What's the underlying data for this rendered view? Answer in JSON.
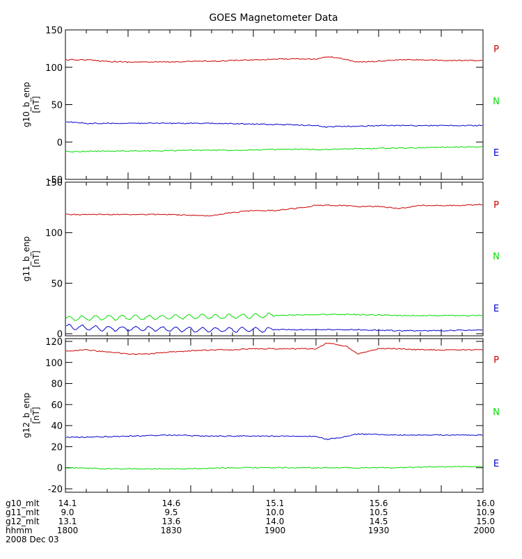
{
  "title": "GOES Magnetometer Data",
  "colors": {
    "P": "#cc0000",
    "N": "#00dd00",
    "E": "#0000cc",
    "axis": "#000000"
  },
  "panel_labels": [
    "P",
    "N",
    "E"
  ],
  "chart_data": [
    {
      "type": "line",
      "title": "GOES Magnetometer Data",
      "ylabel": "g10_b_enp",
      "yunit": "[nT]",
      "ylim": [
        -50,
        150
      ],
      "yticks": [
        -50,
        0,
        50,
        100,
        150
      ],
      "xlim": [
        1800,
        2000
      ],
      "grid": false,
      "legend": "right",
      "series": [
        {
          "name": "P",
          "x": [
            1800,
            1810,
            1820,
            1830,
            1840,
            1850,
            1860,
            1870,
            1880,
            1890,
            1900,
            1910,
            1920,
            1925,
            1930,
            1935,
            1940,
            1950,
            1960,
            1970,
            1980,
            1990,
            2000
          ],
          "values": [
            110,
            110,
            108,
            107,
            107,
            107,
            108,
            108,
            109,
            110,
            111,
            111,
            111,
            114,
            113,
            110,
            107,
            108,
            110,
            110,
            109,
            109,
            109
          ]
        },
        {
          "name": "N",
          "x": [
            1800,
            1820,
            1840,
            1860,
            1880,
            1900,
            1920,
            1940,
            1960,
            1980,
            2000
          ],
          "values": [
            -13,
            -12,
            -12,
            -11,
            -11,
            -10,
            -10,
            -9,
            -8,
            -7,
            -6
          ]
        },
        {
          "name": "E",
          "x": [
            1800,
            1810,
            1830,
            1850,
            1870,
            1890,
            1910,
            1920,
            1925,
            1930,
            1940,
            1950,
            1960,
            1980,
            2000
          ],
          "values": [
            27,
            25,
            25,
            25,
            25,
            24,
            23,
            22,
            20,
            21,
            21,
            22,
            22,
            22,
            22
          ]
        }
      ]
    },
    {
      "type": "line",
      "ylabel": "g11_b_enp",
      "yunit": "[nT]",
      "ylim": [
        0,
        150
      ],
      "yticks": [
        0,
        50,
        100,
        150
      ],
      "xlim": [
        1800,
        2000
      ],
      "grid": false,
      "legend": "right",
      "series": [
        {
          "name": "P",
          "x": [
            1800,
            1810,
            1820,
            1830,
            1840,
            1850,
            1860,
            1870,
            1880,
            1890,
            1900,
            1910,
            1920,
            1930,
            1940,
            1950,
            1960,
            1970,
            1980,
            1990,
            2000
          ],
          "values": [
            118,
            118,
            118,
            118,
            118,
            118,
            117,
            117,
            120,
            122,
            122,
            124,
            127,
            127,
            126,
            126,
            124,
            127,
            127,
            127,
            128
          ]
        },
        {
          "name": "N",
          "x": [
            1800,
            1820,
            1840,
            1860,
            1880,
            1900,
            1920,
            1940,
            1960,
            1980,
            2000
          ],
          "values": [
            15,
            16,
            16,
            17,
            17,
            18,
            19,
            19,
            18,
            18,
            18
          ]
        },
        {
          "name": "E",
          "x": [
            1800,
            1820,
            1840,
            1860,
            1880,
            1900,
            1920,
            1940,
            1960,
            1980,
            2000
          ],
          "values": [
            7,
            5,
            5,
            4,
            4,
            4,
            4,
            4,
            3,
            3,
            4
          ]
        }
      ]
    },
    {
      "type": "line",
      "ylabel": "g12_b_enp",
      "yunit": "[nT]",
      "ylim": [
        -20,
        120
      ],
      "yticks": [
        -20,
        0,
        20,
        40,
        60,
        80,
        100,
        120
      ],
      "xlim": [
        1800,
        2000
      ],
      "grid": false,
      "legend": "right",
      "series": [
        {
          "name": "P",
          "x": [
            1800,
            1810,
            1820,
            1830,
            1840,
            1850,
            1860,
            1870,
            1880,
            1890,
            1900,
            1910,
            1920,
            1925,
            1930,
            1935,
            1940,
            1950,
            1960,
            1970,
            1980,
            1990,
            2000
          ],
          "values": [
            111,
            112,
            110,
            108,
            108,
            110,
            111,
            112,
            112,
            113,
            113,
            113,
            113,
            118,
            117,
            115,
            108,
            113,
            113,
            112,
            112,
            112,
            112
          ]
        },
        {
          "name": "N",
          "x": [
            1800,
            1820,
            1840,
            1860,
            1880,
            1900,
            1920,
            1940,
            1960,
            1980,
            2000
          ],
          "values": [
            0,
            -1,
            -1,
            -1,
            0,
            0,
            0,
            0,
            0,
            1,
            1
          ]
        },
        {
          "name": "E",
          "x": [
            1800,
            1810,
            1830,
            1850,
            1870,
            1890,
            1900,
            1920,
            1925,
            1930,
            1935,
            1940,
            1960,
            1980,
            2000
          ],
          "values": [
            29,
            29,
            30,
            31,
            30,
            30,
            30,
            30,
            27,
            28,
            30,
            32,
            31,
            31,
            31
          ]
        }
      ]
    }
  ],
  "footer": {
    "date": "2008 Dec 03",
    "rows": [
      {
        "label": "g10_mlt",
        "values": [
          "14.1",
          "14.6",
          "15.1",
          "15.6",
          "16.0"
        ]
      },
      {
        "label": "g11_mlt",
        "values": [
          "9.0",
          "9.5",
          "10.0",
          "10.5",
          "10.9"
        ]
      },
      {
        "label": "g12_mlt",
        "values": [
          "13.1",
          "13.6",
          "14.0",
          "14.5",
          "15.0"
        ]
      },
      {
        "label": "hhmm",
        "values": [
          "1800",
          "1830",
          "1900",
          "1930",
          "2000"
        ]
      }
    ]
  }
}
